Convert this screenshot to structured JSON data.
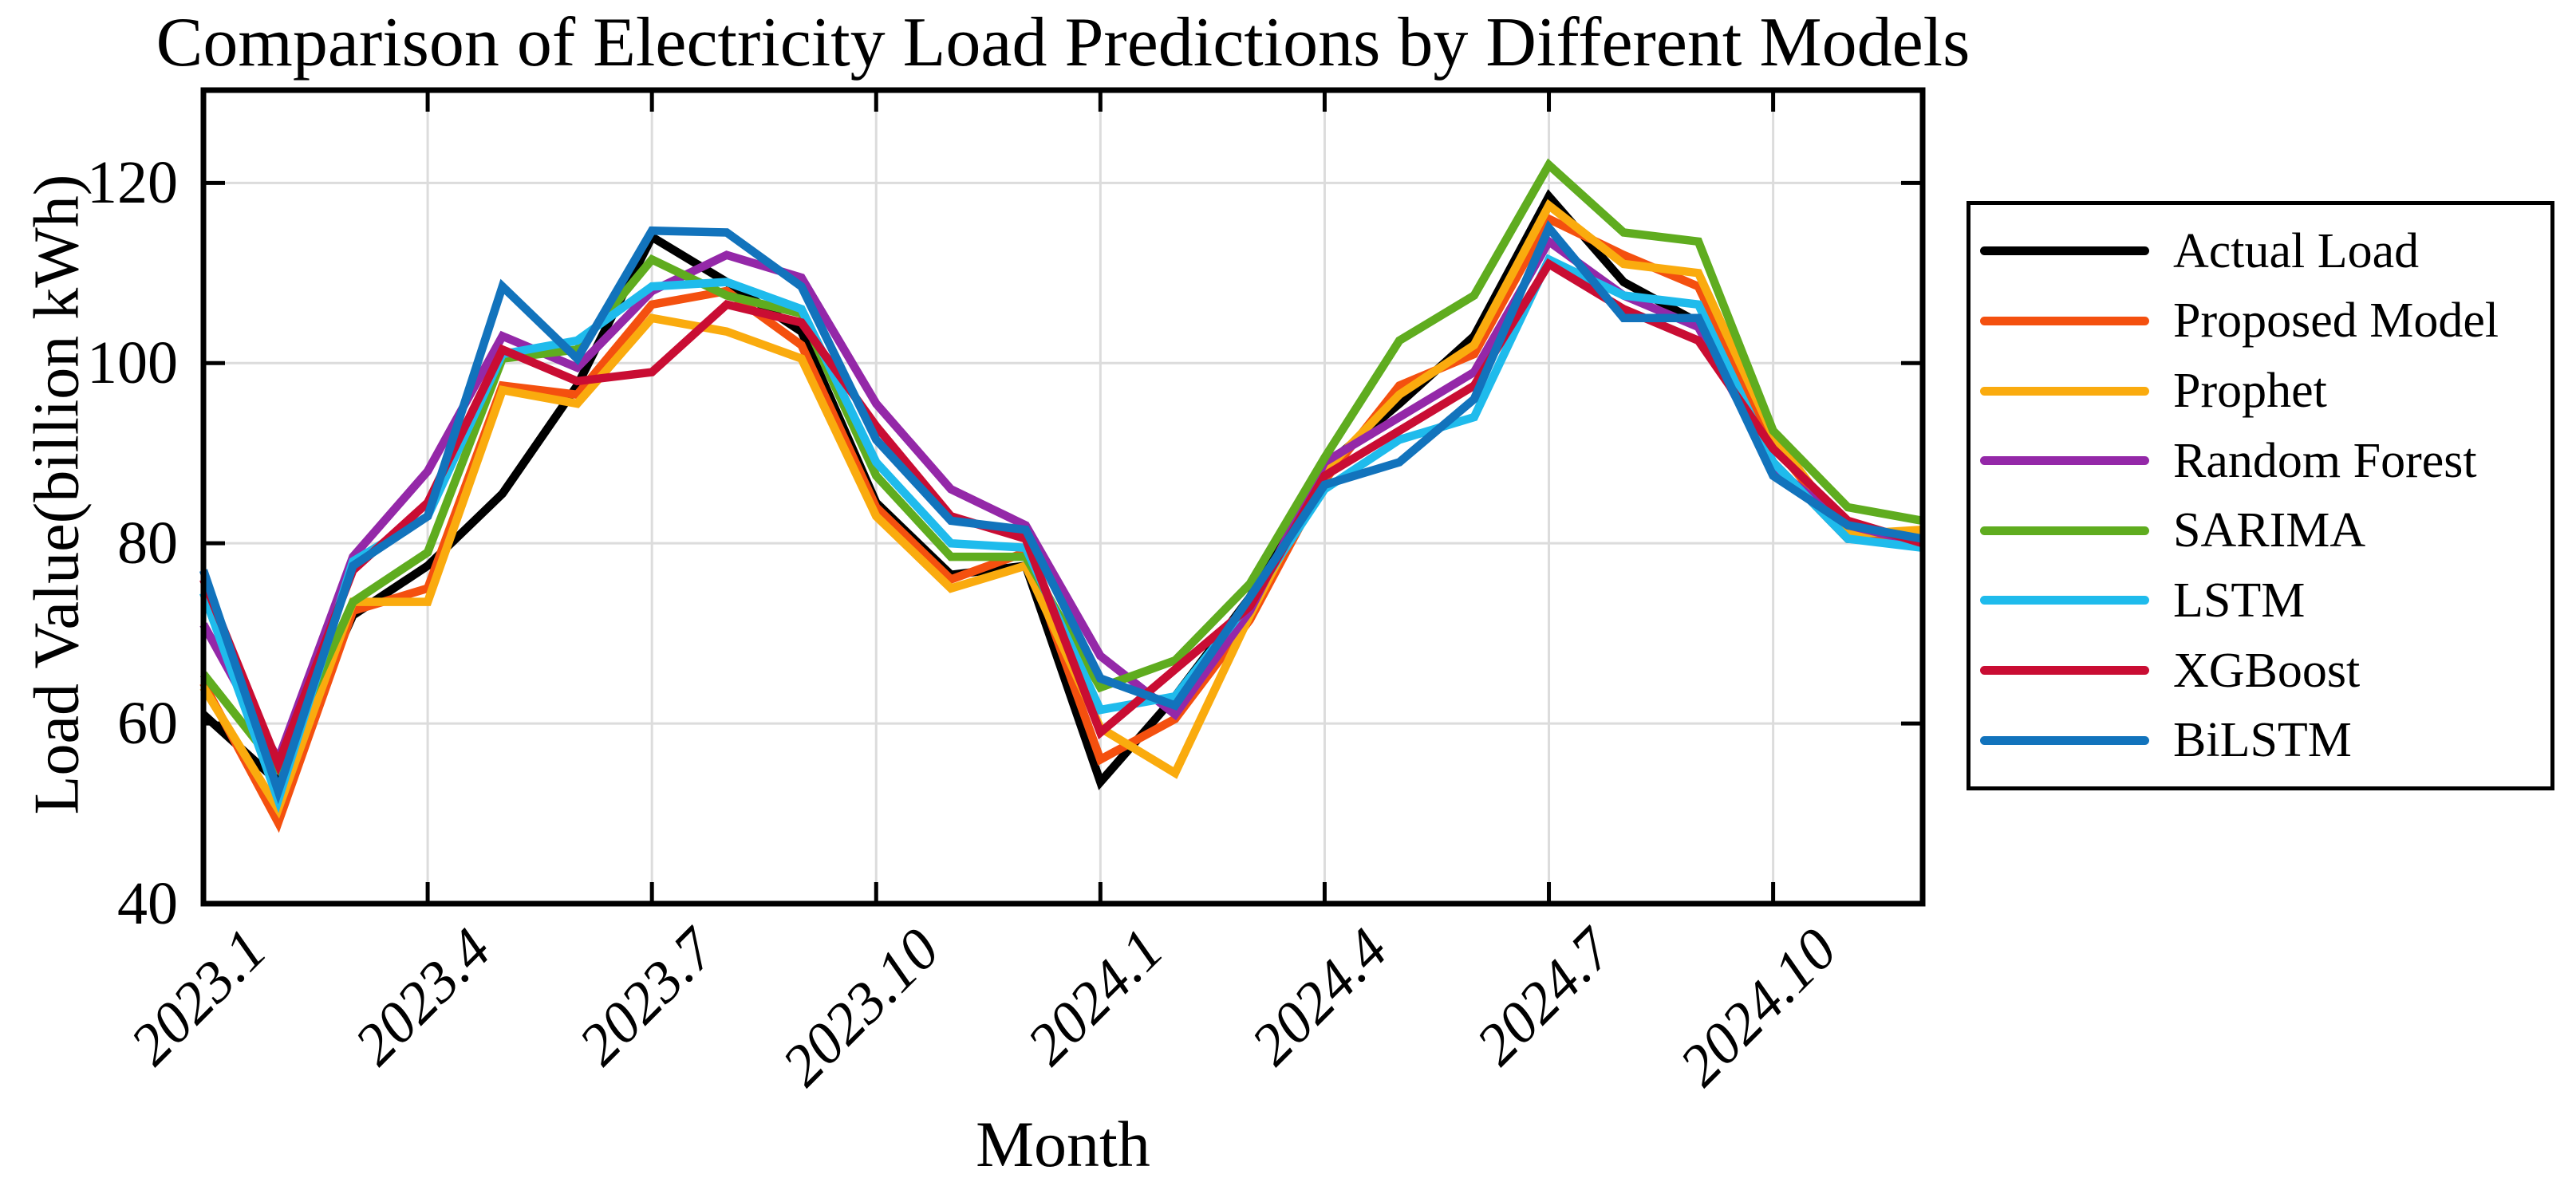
{
  "title": "Comparison of Electricity Load Predictions by Different Models",
  "axes": {
    "x_label": "Month",
    "y_label": "Load Value(billion kWh)",
    "x_tick_labels": [
      "2023.1",
      "2023.4",
      "2023.7",
      "2023.10",
      "2024.1",
      "2024.4",
      "2024.7",
      "2024.10"
    ],
    "y_tick_labels": [
      "40",
      "60",
      "80",
      "100",
      "120"
    ]
  },
  "colors": {
    "axis": "#000000",
    "grid": "#dcdcdc",
    "background": "#ffffff"
  },
  "chart_data": {
    "type": "line",
    "title": "Comparison of Electricity Load Predictions by Different Models",
    "xlabel": "Month",
    "ylabel": "Load Value(billion kWh)",
    "grid": true,
    "legend_position": "outside-right",
    "ylim": [
      40,
      130.3
    ],
    "y_ticks": [
      40,
      60,
      80,
      100,
      120
    ],
    "x_tick_indices": [
      0,
      3,
      6,
      9,
      12,
      15,
      18,
      21
    ],
    "x_tick_labels": [
      "2023.1",
      "2023.4",
      "2023.7",
      "2023.10",
      "2024.1",
      "2024.4",
      "2024.7",
      "2024.10"
    ],
    "categories": [
      "2023.1",
      "2023.2",
      "2023.3",
      "2023.4",
      "2023.5",
      "2023.6",
      "2023.7",
      "2023.8",
      "2023.9",
      "2023.10",
      "2023.11",
      "2023.12",
      "2024.1",
      "2024.2",
      "2024.3",
      "2024.4",
      "2024.5",
      "2024.6",
      "2024.7",
      "2024.8",
      "2024.9",
      "2024.10",
      "2024.11",
      "2024.12"
    ],
    "series": [
      {
        "name": "Actual Load",
        "color": "#000000",
        "values": [
          61,
          53.5,
          72,
          77.5,
          85.5,
          97.5,
          114,
          109,
          103.5,
          84.5,
          76.5,
          77.5,
          53.5,
          63,
          74,
          88.5,
          95.5,
          103,
          118.5,
          109,
          104.5,
          89,
          80.5,
          80
        ]
      },
      {
        "name": "Proposed Model",
        "color": "#f4500f",
        "values": [
          64.5,
          49,
          72.5,
          75,
          97.5,
          96.5,
          106.5,
          108,
          102,
          84,
          76,
          79,
          56,
          60.5,
          71.5,
          87,
          97.5,
          101,
          116,
          112,
          108.5,
          91,
          81,
          80.5
        ]
      },
      {
        "name": "Prophet",
        "color": "#faab0e",
        "values": [
          64,
          50.5,
          73.5,
          73.5,
          97,
          95.5,
          105,
          103.5,
          100.5,
          83,
          75,
          77.5,
          59.5,
          54.5,
          72,
          88,
          96.5,
          102,
          117.5,
          111,
          110,
          92,
          81,
          81.5
        ]
      },
      {
        "name": "Random Forest",
        "color": "#9428a8",
        "values": [
          71,
          56,
          78.5,
          88,
          103,
          99.5,
          108,
          112,
          109.5,
          95.5,
          86,
          82,
          67.5,
          61,
          72.5,
          89,
          94,
          99,
          113.5,
          107.5,
          104,
          88.5,
          82,
          80
        ]
      },
      {
        "name": "SARIMA",
        "color": "#5fac1f",
        "values": [
          65.5,
          55,
          73.5,
          79,
          100.5,
          101.5,
          111.5,
          107.5,
          105.5,
          87.5,
          78.5,
          78.5,
          64,
          67,
          75.5,
          89.5,
          102.5,
          107.5,
          122,
          114.5,
          113.5,
          92.5,
          84,
          82.5
        ]
      },
      {
        "name": "LSTM",
        "color": "#1fbbec",
        "values": [
          74.5,
          51.5,
          78,
          83,
          101,
          102.5,
          108.5,
          109,
          106,
          89,
          80,
          79.5,
          61.5,
          63,
          73.5,
          86,
          91.5,
          94,
          111.5,
          107.5,
          106.5,
          89,
          80.5,
          79.5
        ]
      },
      {
        "name": "XGBoost",
        "color": "#c90d33",
        "values": [
          76,
          55.5,
          77,
          84.5,
          101.5,
          98,
          99,
          106.5,
          104.5,
          93,
          83,
          80.5,
          59,
          66,
          73,
          87.5,
          92.5,
          97.5,
          111,
          106,
          102.5,
          90.5,
          82.5,
          80
        ]
      },
      {
        "name": "BiLSTM",
        "color": "#1273bc",
        "values": [
          77,
          52.5,
          77.5,
          83,
          108.5,
          100.5,
          114.7,
          114.5,
          108.5,
          91.5,
          82.5,
          81.5,
          65,
          62,
          74,
          86.5,
          89,
          96,
          115,
          105,
          105,
          87.5,
          82,
          80.5
        ]
      }
    ]
  }
}
